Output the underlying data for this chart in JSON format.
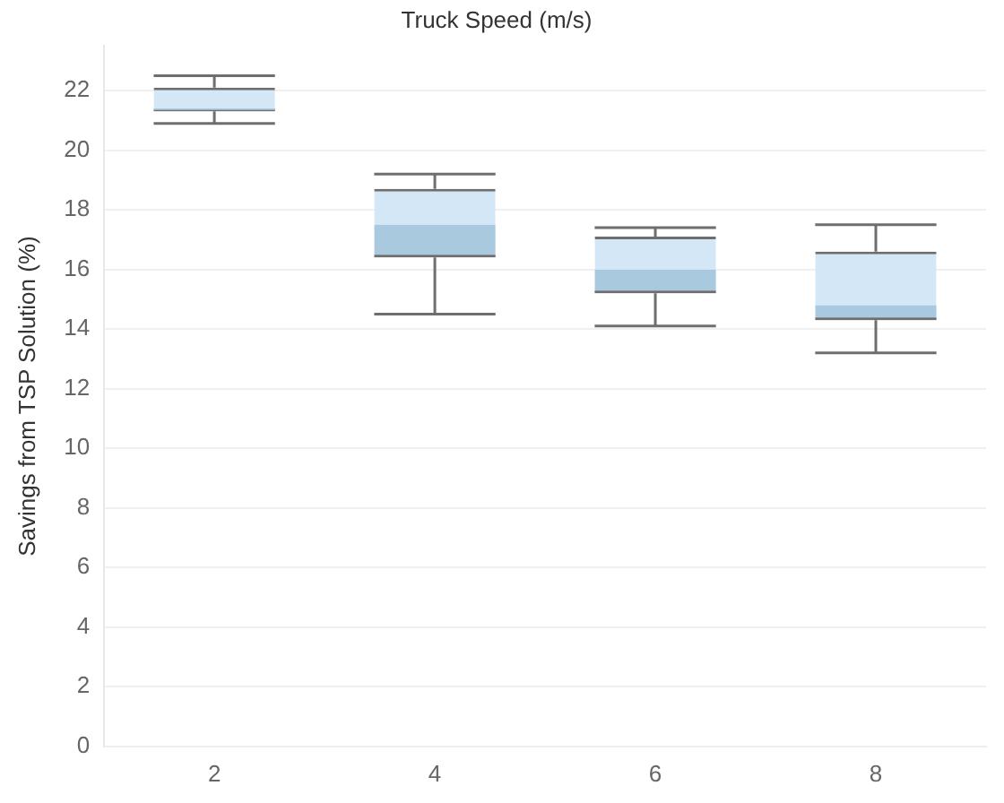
{
  "chart_data": {
    "type": "box",
    "xlabel": "Truck Speed (m/s)",
    "ylabel": "Savings from TSP Solution (%)",
    "categories": [
      "2",
      "4",
      "6",
      "8"
    ],
    "series": [
      {
        "color": "#d3e7f6",
        "colors": [
          "#a8c9de",
          "#a8c9de",
          "#a8c9de",
          "#a8c9de"
        ],
        "boxes": [
          {
            "low": 20.9,
            "q1": 21.3,
            "median": 21.4,
            "q3": 22.1,
            "high": 22.5
          },
          {
            "low": 14.5,
            "q1": 16.4,
            "median": 17.5,
            "q3": 18.7,
            "high": 19.2
          },
          {
            "low": 14.1,
            "q1": 15.2,
            "median": 16.0,
            "q3": 17.1,
            "high": 17.4
          },
          {
            "low": 13.2,
            "q1": 14.3,
            "median": 14.8,
            "q3": 16.6,
            "high": 17.5
          }
        ]
      }
    ],
    "ylim": [
      0,
      23.5
    ],
    "yticks": [
      0,
      2,
      4,
      6,
      8,
      10,
      12,
      14,
      16,
      18,
      20,
      22
    ],
    "grid": "y",
    "legend": false
  }
}
